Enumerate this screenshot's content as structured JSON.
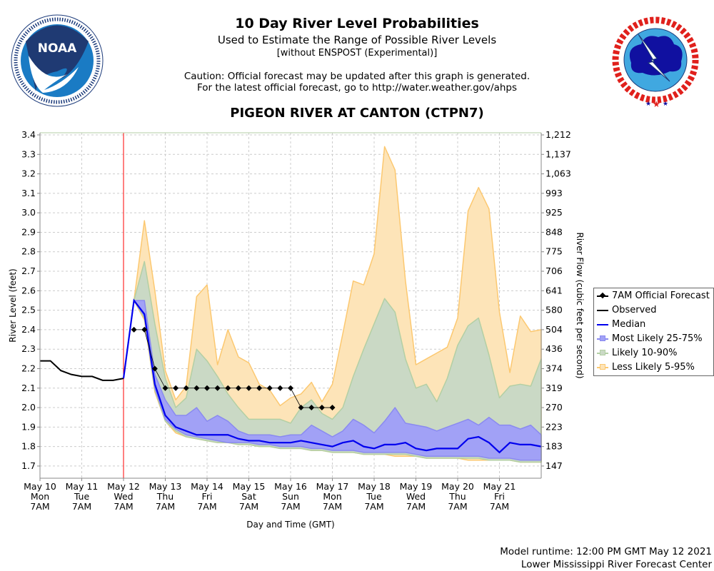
{
  "header": {
    "title": "10 Day River Level Probabilities",
    "subtitle": "Used to Estimate the Range of Possible River Levels",
    "subtitle2": "[without ENSPOST (Experimental)]",
    "caution1": "Caution: Official forecast may be updated after this graph is generated.",
    "caution2": "For the latest official forecast, go to http://water.weather.gov/ahps",
    "station": "PIGEON RIVER AT CANTON (CTPN7)"
  },
  "logos": {
    "left": {
      "text": "NOAA",
      "ring_text": "NATIONAL OCEANIC AND ATMOSPHERIC ADMINISTRATION · U.S. DEPARTMENT OF COMMERCE"
    },
    "right": {
      "text": "NATIONAL WEATHER SERVICE"
    }
  },
  "footer": {
    "runtime": "Model runtime: 12:00 PM GMT May 12 2021",
    "center": "Lower Mississippi River Forecast Center"
  },
  "legend": {
    "forecast": "7AM Official Forecast",
    "observed": "Observed",
    "median": "Median",
    "q25_75": "Most Likely 25-75%",
    "q10_90": "Likely 10-90%",
    "q05_95": "Less Likely 5-95%"
  },
  "chart_data": {
    "type": "area",
    "xlabel": "Day and Time (GMT)",
    "ylabel": "River Level (feet)",
    "ylabel_right": "River Flow (cubic feet per second)",
    "ylim": [
      1.64,
      3.41
    ],
    "xlim": [
      "2021-05-10T12Z",
      "2021-05-22T12Z"
    ],
    "grid": true,
    "legend_position": "right",
    "current_time": "2021-05-12T12Z",
    "colors": {
      "q05_95_fill": "#fde4b8",
      "q05_95_line": "#fcc870",
      "q10_90_fill": "#cad9c5",
      "q10_90_line": "#b3cfa4",
      "q25_75_fill": "#a1a1f6",
      "q25_75_line": "#8a8af0",
      "median": "#0000ee",
      "observed": "#000000",
      "forecast": "#000000",
      "now_line": "#ff0000"
    },
    "yticks": [
      3.4,
      3.3,
      3.2,
      3.1,
      3.0,
      2.9,
      2.8,
      2.7,
      2.6,
      2.5,
      2.4,
      2.3,
      2.2,
      2.1,
      2.0,
      1.9,
      1.8,
      1.7
    ],
    "yticks_right": [
      "1,212",
      "1,137",
      "1,063",
      "993",
      "925",
      "848",
      "775",
      "706",
      "641",
      "580",
      "504",
      "436",
      "374",
      "319",
      "270",
      "223",
      "183",
      "147"
    ],
    "xticks": [
      {
        "date": "May 10",
        "day": "Mon",
        "time": "7AM"
      },
      {
        "date": "May 11",
        "day": "Tue",
        "time": "7AM"
      },
      {
        "date": "May 12",
        "day": "Wed",
        "time": "7AM"
      },
      {
        "date": "May 13",
        "day": "Thu",
        "time": "7AM"
      },
      {
        "date": "May 14",
        "day": "Fri",
        "time": "7AM"
      },
      {
        "date": "May 15",
        "day": "Sat",
        "time": "7AM"
      },
      {
        "date": "May 16",
        "day": "Sun",
        "time": "7AM"
      },
      {
        "date": "May 17",
        "day": "Mon",
        "time": "7AM"
      },
      {
        "date": "May 18",
        "day": "Tue",
        "time": "7AM"
      },
      {
        "date": "May 19",
        "day": "Wed",
        "time": "7AM"
      },
      {
        "date": "May 20",
        "day": "Thu",
        "time": "7AM"
      },
      {
        "date": "May 21",
        "day": "Fri",
        "time": "7AM"
      }
    ],
    "observed": {
      "times": [
        "2021-05-10T12Z",
        "2021-05-10T18Z",
        "2021-05-11T00Z",
        "2021-05-11T06Z",
        "2021-05-11T12Z",
        "2021-05-11T18Z",
        "2021-05-12T00Z",
        "2021-05-12T06Z",
        "2021-05-12T12Z"
      ],
      "values": [
        2.24,
        2.24,
        2.19,
        2.17,
        2.16,
        2.16,
        2.14,
        2.14,
        2.15
      ]
    },
    "ensemble_times": [
      "2021-05-12T12Z",
      "2021-05-12T18Z",
      "2021-05-13T00Z",
      "2021-05-13T06Z",
      "2021-05-13T12Z",
      "2021-05-13T18Z",
      "2021-05-14T00Z",
      "2021-05-14T06Z",
      "2021-05-14T12Z",
      "2021-05-14T18Z",
      "2021-05-15T00Z",
      "2021-05-15T06Z",
      "2021-05-15T12Z",
      "2021-05-15T18Z",
      "2021-05-16T00Z",
      "2021-05-16T06Z",
      "2021-05-16T12Z",
      "2021-05-16T18Z",
      "2021-05-17T00Z",
      "2021-05-17T06Z",
      "2021-05-17T12Z",
      "2021-05-17T18Z",
      "2021-05-18T00Z",
      "2021-05-18T06Z",
      "2021-05-18T12Z",
      "2021-05-18T18Z",
      "2021-05-19T00Z",
      "2021-05-19T06Z",
      "2021-05-19T12Z",
      "2021-05-19T18Z",
      "2021-05-20T00Z",
      "2021-05-20T06Z",
      "2021-05-20T12Z",
      "2021-05-20T18Z",
      "2021-05-21T00Z",
      "2021-05-21T06Z",
      "2021-05-21T12Z",
      "2021-05-21T18Z",
      "2021-05-22T00Z",
      "2021-05-22T06Z",
      "2021-05-22T12Z"
    ],
    "median": [
      2.15,
      2.55,
      2.48,
      2.12,
      1.96,
      1.9,
      1.88,
      1.86,
      1.86,
      1.86,
      1.86,
      1.84,
      1.83,
      1.83,
      1.82,
      1.82,
      1.82,
      1.83,
      1.82,
      1.81,
      1.8,
      1.82,
      1.83,
      1.8,
      1.79,
      1.81,
      1.81,
      1.82,
      1.79,
      1.78,
      1.79,
      1.79,
      1.79,
      1.84,
      1.85,
      1.82,
      1.77,
      1.82,
      1.81,
      1.81,
      1.8
    ],
    "q75": [
      2.15,
      2.55,
      2.55,
      2.17,
      2.04,
      1.96,
      1.96,
      2.0,
      1.93,
      1.96,
      1.93,
      1.88,
      1.86,
      1.86,
      1.86,
      1.85,
      1.86,
      1.86,
      1.91,
      1.88,
      1.85,
      1.88,
      1.94,
      1.91,
      1.87,
      1.93,
      2.0,
      1.92,
      1.91,
      1.9,
      1.88,
      1.9,
      1.92,
      1.94,
      1.91,
      1.95,
      1.91,
      1.91,
      1.89,
      1.91,
      1.86
    ],
    "q25": [
      2.15,
      2.55,
      2.47,
      2.1,
      1.94,
      1.89,
      1.86,
      1.85,
      1.84,
      1.83,
      1.82,
      1.82,
      1.82,
      1.81,
      1.81,
      1.8,
      1.8,
      1.8,
      1.79,
      1.79,
      1.78,
      1.78,
      1.78,
      1.77,
      1.77,
      1.77,
      1.77,
      1.77,
      1.76,
      1.75,
      1.75,
      1.75,
      1.75,
      1.75,
      1.75,
      1.74,
      1.74,
      1.74,
      1.73,
      1.73,
      1.73
    ],
    "q90": [
      2.15,
      2.55,
      2.75,
      2.43,
      2.15,
      2.0,
      2.05,
      2.3,
      2.24,
      2.16,
      2.07,
      2.0,
      1.94,
      1.94,
      1.94,
      1.94,
      1.92,
      2.0,
      2.04,
      1.97,
      1.94,
      2.0,
      2.16,
      2.3,
      2.43,
      2.56,
      2.49,
      2.25,
      2.1,
      2.12,
      2.03,
      2.15,
      2.32,
      2.42,
      2.46,
      2.27,
      2.05,
      2.11,
      2.12,
      2.11,
      2.25
    ],
    "q10": [
      2.15,
      2.55,
      2.46,
      2.09,
      1.93,
      1.88,
      1.85,
      1.84,
      1.83,
      1.82,
      1.82,
      1.81,
      1.81,
      1.8,
      1.8,
      1.79,
      1.79,
      1.79,
      1.78,
      1.78,
      1.77,
      1.77,
      1.77,
      1.76,
      1.76,
      1.76,
      1.76,
      1.76,
      1.75,
      1.74,
      1.74,
      1.74,
      1.74,
      1.74,
      1.74,
      1.73,
      1.73,
      1.73,
      1.72,
      1.72,
      1.72
    ],
    "q95": [
      2.15,
      2.55,
      2.96,
      2.6,
      2.19,
      2.04,
      2.11,
      2.57,
      2.63,
      2.22,
      2.4,
      2.26,
      2.23,
      2.12,
      2.09,
      2.01,
      2.05,
      2.07,
      2.13,
      2.03,
      2.12,
      2.38,
      2.65,
      2.63,
      2.79,
      3.34,
      3.22,
      2.65,
      2.22,
      2.25,
      2.28,
      2.31,
      2.46,
      3.01,
      3.13,
      3.02,
      2.49,
      2.18,
      2.47,
      2.39,
      2.4
    ],
    "q05": [
      2.15,
      2.55,
      2.45,
      2.08,
      1.93,
      1.87,
      1.85,
      1.84,
      1.83,
      1.82,
      1.82,
      1.81,
      1.81,
      1.8,
      1.8,
      1.79,
      1.79,
      1.79,
      1.78,
      1.78,
      1.77,
      1.77,
      1.77,
      1.76,
      1.76,
      1.76,
      1.75,
      1.75,
      1.75,
      1.74,
      1.74,
      1.74,
      1.74,
      1.73,
      1.73,
      1.73,
      1.73,
      1.73,
      1.72,
      1.72,
      1.72
    ],
    "forecast": {
      "times": [
        "2021-05-12T18Z",
        "2021-05-13T00Z",
        "2021-05-13T06Z",
        "2021-05-13T12Z",
        "2021-05-13T18Z",
        "2021-05-14T00Z",
        "2021-05-14T06Z",
        "2021-05-14T12Z",
        "2021-05-14T18Z",
        "2021-05-15T00Z",
        "2021-05-15T06Z",
        "2021-05-15T12Z",
        "2021-05-15T18Z",
        "2021-05-16T00Z",
        "2021-05-16T06Z",
        "2021-05-16T12Z",
        "2021-05-16T18Z",
        "2021-05-17T00Z",
        "2021-05-17T06Z",
        "2021-05-17T12Z"
      ],
      "values": [
        2.4,
        2.4,
        2.2,
        2.1,
        2.1,
        2.1,
        2.1,
        2.1,
        2.1,
        2.1,
        2.1,
        2.1,
        2.1,
        2.1,
        2.1,
        2.1,
        2.0,
        2.0,
        2.0,
        2.0
      ]
    }
  }
}
